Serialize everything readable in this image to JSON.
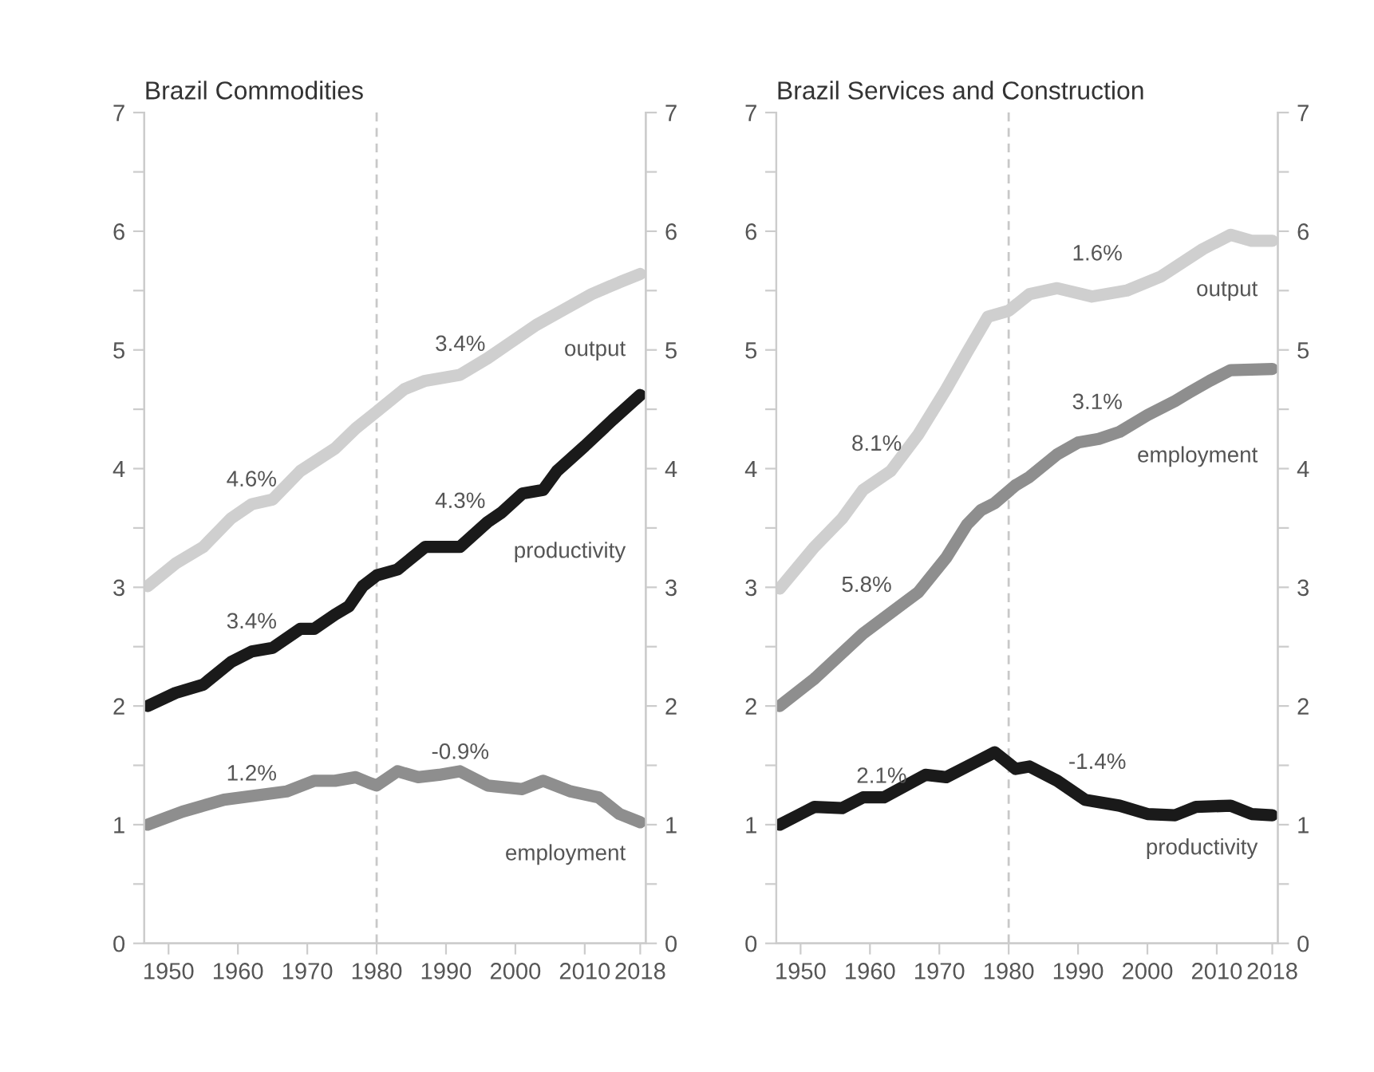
{
  "chart_data": [
    {
      "type": "line",
      "title": "Brazil Commodities",
      "xlim": [
        1946.5,
        2018.8
      ],
      "xticks": [
        1950,
        1960,
        1970,
        1980,
        1990,
        2000,
        2010,
        2018
      ],
      "ylim": [
        0,
        7
      ],
      "yticks": [
        0,
        {
          "value": 0.5,
          "label": null
        },
        1,
        {
          "value": 1.5,
          "label": null
        },
        2,
        {
          "value": 2.5,
          "label": null
        },
        3,
        {
          "value": 3.5,
          "label": null
        },
        4,
        {
          "value": 4.5,
          "label": null
        },
        5,
        {
          "value": 5.5,
          "label": null
        },
        6,
        {
          "value": 6.5,
          "label": null
        },
        7
      ],
      "y2lim": [
        0,
        7
      ],
      "y2ticks": [
        0,
        {
          "value": 0.5,
          "label": null
        },
        1,
        {
          "value": 1.5,
          "label": null
        },
        2,
        {
          "value": 2.5,
          "label": null
        },
        3,
        {
          "value": 3.5,
          "label": null
        },
        4,
        {
          "value": 4.5,
          "label": null
        },
        5,
        {
          "value": 5.5,
          "label": null
        },
        6,
        {
          "value": 6.5,
          "label": null
        },
        7
      ],
      "grid": false,
      "legend": false,
      "line_style": "solid",
      "ref_lines": [
        {
          "axis": "x",
          "value": 1980,
          "label": null,
          "color": "#c8c8c8",
          "line_style": "dashed"
        }
      ],
      "series": [
        {
          "name": "output",
          "color": "#cfcfcf",
          "x": [
            1947,
            1951,
            1955,
            1959,
            1962,
            1965,
            1969,
            1974,
            1977,
            1980,
            1984,
            1987,
            1992,
            1996,
            1999,
            2003,
            2007,
            2011,
            2015,
            2018
          ],
          "values": [
            3.01,
            3.2,
            3.34,
            3.58,
            3.7,
            3.74,
            3.98,
            4.17,
            4.34,
            4.48,
            4.67,
            4.74,
            4.79,
            4.93,
            5.05,
            5.21,
            5.34,
            5.47,
            5.57,
            5.64
          ]
        },
        {
          "name": "productivity",
          "color": "#1a1a1a",
          "x": [
            1947,
            1951,
            1955,
            1959,
            1962,
            1965,
            1969,
            1971,
            1974,
            1976,
            1978,
            1980,
            1983,
            1987,
            1989,
            1992,
            1996,
            1998,
            2001,
            2004,
            2006,
            2010,
            2014,
            2018
          ],
          "values": [
            2.0,
            2.11,
            2.18,
            2.37,
            2.46,
            2.49,
            2.65,
            2.65,
            2.77,
            2.84,
            3.01,
            3.1,
            3.15,
            3.34,
            3.34,
            3.34,
            3.55,
            3.63,
            3.79,
            3.82,
            3.98,
            4.19,
            4.41,
            4.62
          ]
        },
        {
          "name": "employment",
          "color": "#8e8e8e",
          "x": [
            1947,
            1952,
            1958,
            1967,
            1971,
            1974,
            1977,
            1979,
            1980,
            1983,
            1986,
            1989,
            1992,
            1996,
            2001,
            2004,
            2008,
            2012,
            2015,
            2018
          ],
          "values": [
            1.0,
            1.11,
            1.21,
            1.28,
            1.37,
            1.37,
            1.4,
            1.35,
            1.33,
            1.45,
            1.4,
            1.42,
            1.45,
            1.33,
            1.3,
            1.37,
            1.28,
            1.23,
            1.09,
            1.02
          ]
        }
      ],
      "annotations": [
        "4.6%",
        "3.4%",
        "1.2%",
        "3.4%",
        "4.3%",
        "-0.9%"
      ]
    },
    {
      "type": "line",
      "title": "Brazil Services and Construction",
      "xlim": [
        1946.5,
        2018.8
      ],
      "xticks": [
        1950,
        1960,
        1970,
        1980,
        1990,
        2000,
        2010,
        2018
      ],
      "ylim": [
        0,
        7
      ],
      "yticks": [
        0,
        {
          "value": 0.5,
          "label": null
        },
        1,
        {
          "value": 1.5,
          "label": null
        },
        2,
        {
          "value": 2.5,
          "label": null
        },
        3,
        {
          "value": 3.5,
          "label": null
        },
        4,
        {
          "value": 4.5,
          "label": null
        },
        5,
        {
          "value": 5.5,
          "label": null
        },
        6,
        {
          "value": 6.5,
          "label": null
        },
        7
      ],
      "y2lim": [
        0,
        7
      ],
      "y2ticks": [
        0,
        {
          "value": 0.5,
          "label": null
        },
        1,
        {
          "value": 1.5,
          "label": null
        },
        2,
        {
          "value": 2.5,
          "label": null
        },
        3,
        {
          "value": 3.5,
          "label": null
        },
        4,
        {
          "value": 4.5,
          "label": null
        },
        5,
        {
          "value": 5.5,
          "label": null
        },
        6,
        {
          "value": 6.5,
          "label": null
        },
        7
      ],
      "grid": false,
      "legend": false,
      "line_style": "solid",
      "ref_lines": [
        {
          "axis": "x",
          "value": 1980,
          "label": null,
          "color": "#c8c8c8",
          "line_style": "dashed"
        }
      ],
      "series": [
        {
          "name": "output",
          "color": "#cfcfcf",
          "x": [
            1947,
            1952,
            1956,
            1959,
            1963,
            1967,
            1971,
            1974,
            1977,
            1980,
            1983,
            1987,
            1992,
            1997,
            2002,
            2008,
            2012,
            2015,
            2018
          ],
          "values": [
            2.99,
            3.34,
            3.58,
            3.82,
            3.98,
            4.29,
            4.67,
            4.98,
            5.28,
            5.33,
            5.47,
            5.52,
            5.45,
            5.5,
            5.62,
            5.85,
            5.97,
            5.92,
            5.92
          ]
        },
        {
          "name": "employment",
          "color": "#8e8e8e",
          "x": [
            1947,
            1952,
            1959,
            1967,
            1971,
            1974,
            1976,
            1978,
            1981,
            1983,
            1987,
            1990,
            1993,
            1996,
            2000,
            2004,
            2006,
            2009,
            2012,
            2018
          ],
          "values": [
            2.0,
            2.23,
            2.61,
            2.96,
            3.25,
            3.53,
            3.65,
            3.71,
            3.86,
            3.93,
            4.12,
            4.22,
            4.25,
            4.31,
            4.45,
            4.57,
            4.64,
            4.74,
            4.83,
            4.84
          ]
        },
        {
          "name": "productivity",
          "color": "#1a1a1a",
          "x": [
            1947,
            1950,
            1952,
            1956,
            1959,
            1962,
            1968,
            1971,
            1975,
            1978,
            1981,
            1983,
            1987,
            1991,
            1996,
            2000,
            2004,
            2007,
            2012,
            2015,
            2018
          ],
          "values": [
            1.0,
            1.09,
            1.15,
            1.14,
            1.23,
            1.23,
            1.42,
            1.4,
            1.52,
            1.61,
            1.47,
            1.49,
            1.37,
            1.21,
            1.16,
            1.09,
            1.08,
            1.15,
            1.16,
            1.09,
            1.08
          ]
        }
      ],
      "annotations": [
        "8.1%",
        "5.8%",
        "2.1%",
        "1.6%",
        "3.1%",
        "-1.4%"
      ]
    }
  ]
}
